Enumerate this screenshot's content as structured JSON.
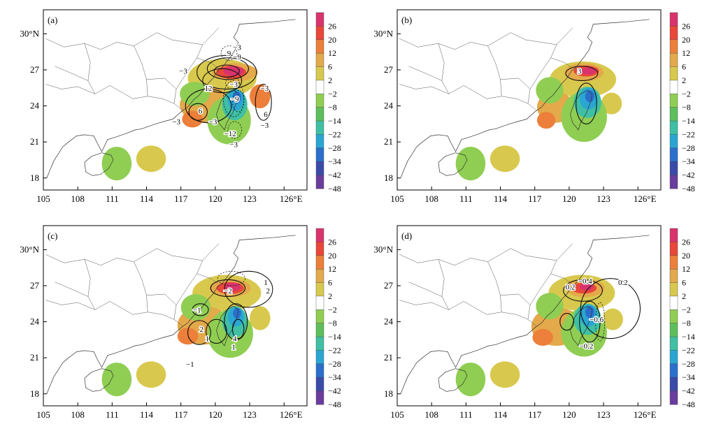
{
  "figure": {
    "colorbar_ticks": [
      "26",
      "20",
      "12",
      "6",
      "2",
      "−2",
      "−8",
      "−14",
      "−22",
      "−28",
      "−34",
      "−42",
      "−48"
    ],
    "colorbar_colors": [
      "#d9336d",
      "#e8473a",
      "#ec7f3a",
      "#e3a94a",
      "#d8c94e",
      "#ffffff",
      "#8fce52",
      "#5cbf5c",
      "#3fbfa4",
      "#2aa6d3",
      "#2a6fcb",
      "#3a4aa8",
      "#6a3c9e"
    ],
    "x_ticks": [
      "105",
      "108",
      "111",
      "114",
      "117",
      "120",
      "123",
      "126°E"
    ],
    "y_ticks": [
      "18",
      "21",
      "24",
      "27",
      "30°N"
    ],
    "panels": [
      {
        "id": "a",
        "label": "(a)",
        "contour_labels": [
          {
            "text": "−3",
            "lon": 117.2,
            "lat": 26.9
          },
          {
            "text": "9",
            "lon": 121.2,
            "lat": 28.4
          },
          {
            "text": "−3",
            "lon": 121.9,
            "lat": 28.9
          },
          {
            "text": "−9",
            "lon": 121.9,
            "lat": 28.1
          },
          {
            "text": "−3",
            "lon": 121.6,
            "lat": 25.8
          },
          {
            "text": "12",
            "lon": 119.4,
            "lat": 25.5
          },
          {
            "text": "−3",
            "lon": 124.3,
            "lat": 25.5
          },
          {
            "text": "−9",
            "lon": 121.7,
            "lat": 24.6
          },
          {
            "text": "6",
            "lon": 118.7,
            "lat": 23.6
          },
          {
            "text": "6",
            "lon": 124.4,
            "lat": 23.3
          },
          {
            "text": "−3",
            "lon": 116.6,
            "lat": 22.7
          },
          {
            "text": "−3",
            "lon": 119.8,
            "lat": 22.7
          },
          {
            "text": "−3",
            "lon": 124.3,
            "lat": 22.4
          },
          {
            "text": "−12",
            "lon": 121.3,
            "lat": 21.7
          },
          {
            "text": "−3",
            "lon": 121.6,
            "lat": 20.8
          }
        ]
      },
      {
        "id": "b",
        "label": "(b)",
        "contour_labels": [
          {
            "text": "3",
            "lon": 120.9,
            "lat": 26.9
          }
        ]
      },
      {
        "id": "c",
        "label": "(c)",
        "contour_labels": [
          {
            "text": "−2",
            "lon": 121.1,
            "lat": 26.6
          },
          {
            "text": "1",
            "lon": 124.4,
            "lat": 27.3
          },
          {
            "text": "2",
            "lon": 124.6,
            "lat": 26.6
          },
          {
            "text": "−1",
            "lon": 118.4,
            "lat": 25.0
          },
          {
            "text": "2",
            "lon": 118.8,
            "lat": 23.4
          },
          {
            "text": "1",
            "lon": 119.3,
            "lat": 22.6
          },
          {
            "text": "4",
            "lon": 121.7,
            "lat": 22.6
          },
          {
            "text": "1",
            "lon": 121.6,
            "lat": 21.9
          },
          {
            "text": "−1",
            "lon": 117.8,
            "lat": 20.5
          }
        ]
      },
      {
        "id": "d",
        "label": "(d)",
        "contour_labels": [
          {
            "text": "−0.4",
            "lon": 121.4,
            "lat": 27.4
          },
          {
            "text": "0.2",
            "lon": 124.7,
            "lat": 27.3
          },
          {
            "text": "0.2",
            "lon": 120.1,
            "lat": 26.9
          },
          {
            "text": "−0.6",
            "lon": 122.4,
            "lat": 24.2
          },
          {
            "text": "−0.2",
            "lon": 121.5,
            "lat": 22.0
          }
        ]
      }
    ]
  }
}
